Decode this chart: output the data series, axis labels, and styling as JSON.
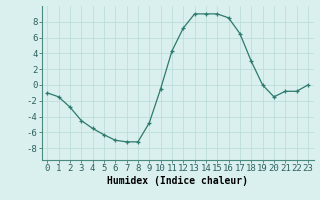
{
  "x": [
    0,
    1,
    2,
    3,
    4,
    5,
    6,
    7,
    8,
    9,
    10,
    11,
    12,
    13,
    14,
    15,
    16,
    17,
    18,
    19,
    20,
    21,
    22,
    23
  ],
  "y": [
    -1.0,
    -1.5,
    -2.8,
    -4.5,
    -5.5,
    -6.3,
    -7.0,
    -7.2,
    -7.2,
    -4.8,
    -0.5,
    4.3,
    7.2,
    9.0,
    9.0,
    9.0,
    8.5,
    6.5,
    3.0,
    0.0,
    -1.5,
    -0.8,
    -0.8,
    0.0
  ],
  "xlabel": "Humidex (Indice chaleur)",
  "ylim": [
    -9.5,
    10.0
  ],
  "xlim": [
    -0.5,
    23.5
  ],
  "yticks": [
    -8,
    -6,
    -4,
    -2,
    0,
    2,
    4,
    6,
    8
  ],
  "xticks": [
    0,
    1,
    2,
    3,
    4,
    5,
    6,
    7,
    8,
    9,
    10,
    11,
    12,
    13,
    14,
    15,
    16,
    17,
    18,
    19,
    20,
    21,
    22,
    23
  ],
  "line_color": "#2d7a6e",
  "bg_color": "#d9f0ee",
  "grid_color": "#b8dbd8",
  "xlabel_fontsize": 7,
  "tick_fontsize": 6.5
}
